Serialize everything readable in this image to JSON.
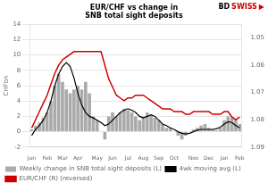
{
  "chart_data": {
    "type": "bar",
    "title": [
      "EUR/CHF vs change in",
      "SNB total sight deposits"
    ],
    "ylabel": "CHFbn",
    "categories": [
      "Jan",
      null,
      null,
      null,
      "Feb",
      null,
      null,
      null,
      "Mar",
      null,
      null,
      null,
      "Apr",
      null,
      null,
      null,
      null,
      "May",
      null,
      null,
      null,
      "Jun",
      null,
      null,
      null,
      "Jul",
      null,
      null,
      null,
      "Aug",
      null,
      null,
      null,
      "Sep",
      null,
      null,
      null,
      "Oct",
      null,
      null,
      null,
      null,
      "Nov",
      null,
      null,
      null,
      "Dec",
      null,
      null,
      null,
      "Jan",
      null,
      null,
      null,
      "Feb"
    ],
    "series": [
      {
        "name": "Weekly change in SNB total sight deposits (L)",
        "type": "bar",
        "color": "#aaaaaa",
        "values": [
          0.3,
          0.8,
          1.2,
          1.8,
          2.5,
          4.0,
          6.0,
          7.5,
          6.5,
          5.5,
          5.0,
          5.5,
          6.0,
          5.5,
          6.5,
          5.0,
          2.0,
          1.5,
          0.0,
          -1.0,
          2.0,
          2.5,
          2.0,
          2.5,
          3.0,
          2.8,
          2.5,
          2.0,
          1.5,
          2.0,
          2.5,
          2.2,
          1.8,
          1.5,
          1.0,
          0.5,
          0.5,
          0.0,
          -0.5,
          -1.0,
          -0.5,
          0.0,
          0.3,
          0.5,
          0.8,
          1.0,
          0.5,
          0.3,
          0.2,
          0.5,
          1.5,
          2.0,
          1.8,
          1.5,
          1.0
        ]
      },
      {
        "name": "4wk moving avg (L)",
        "type": "line",
        "color": "#000000",
        "values": [
          -0.5,
          0.3,
          0.8,
          1.5,
          2.5,
          4.0,
          6.0,
          7.5,
          8.5,
          9.0,
          8.5,
          7.0,
          5.0,
          3.5,
          2.5,
          2.0,
          1.8,
          1.5,
          1.2,
          0.8,
          1.0,
          1.5,
          2.0,
          2.5,
          2.8,
          3.0,
          2.8,
          2.5,
          2.0,
          1.8,
          2.0,
          2.2,
          2.0,
          1.5,
          1.0,
          0.8,
          0.5,
          0.3,
          0.0,
          -0.2,
          -0.3,
          -0.2,
          0.0,
          0.2,
          0.3,
          0.3,
          0.3,
          0.3,
          0.4,
          0.6,
          1.0,
          1.3,
          1.2,
          0.8,
          0.5
        ]
      },
      {
        "name": "EUR/CHF (R) (reversed)",
        "type": "line",
        "color": "#cc0000",
        "axis": "y2",
        "values": [
          1.083,
          1.08,
          1.077,
          1.074,
          1.071,
          1.067,
          1.063,
          1.06,
          1.058,
          1.057,
          1.056,
          1.055,
          1.055,
          1.055,
          1.055,
          1.055,
          1.055,
          1.055,
          1.055,
          1.06,
          1.065,
          1.068,
          1.071,
          1.072,
          1.073,
          1.072,
          1.072,
          1.071,
          1.071,
          1.071,
          1.072,
          1.073,
          1.074,
          1.075,
          1.076,
          1.076,
          1.076,
          1.077,
          1.077,
          1.077,
          1.078,
          1.078,
          1.077,
          1.077,
          1.077,
          1.077,
          1.077,
          1.078,
          1.078,
          1.078,
          1.077,
          1.077,
          1.079,
          1.08,
          1.079
        ]
      }
    ],
    "ylim": [
      -2,
      14
    ],
    "yticks": [
      -2,
      0,
      2,
      4,
      6,
      8,
      10,
      12,
      14
    ],
    "y2lim": [
      1.09,
      1.045
    ],
    "y2ticks": [
      1.05,
      1.06,
      1.07,
      1.08,
      1.09
    ],
    "grid": true,
    "legend": "lower left",
    "annotations": [
      {
        "text": "BD",
        "color": "#000000"
      },
      {
        "text": "SWISS",
        "color": "#cc0000"
      },
      {
        "text": "▶",
        "color": "#cc0000"
      }
    ]
  }
}
